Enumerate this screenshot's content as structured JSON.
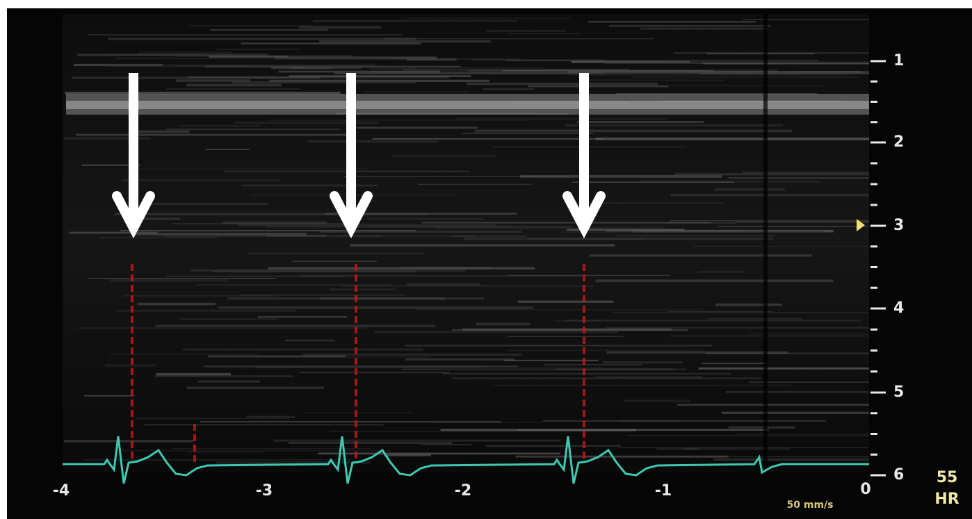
{
  "depth_scale": {
    "labels": [
      "1",
      "2",
      "3",
      "4",
      "5",
      "6"
    ]
  },
  "time_axis": {
    "labels": [
      "-4",
      "-3",
      "-2",
      "-1",
      "0"
    ]
  },
  "heart_rate": {
    "value": "55",
    "label": "HR"
  },
  "sweep_speed": "50 mm/s"
}
